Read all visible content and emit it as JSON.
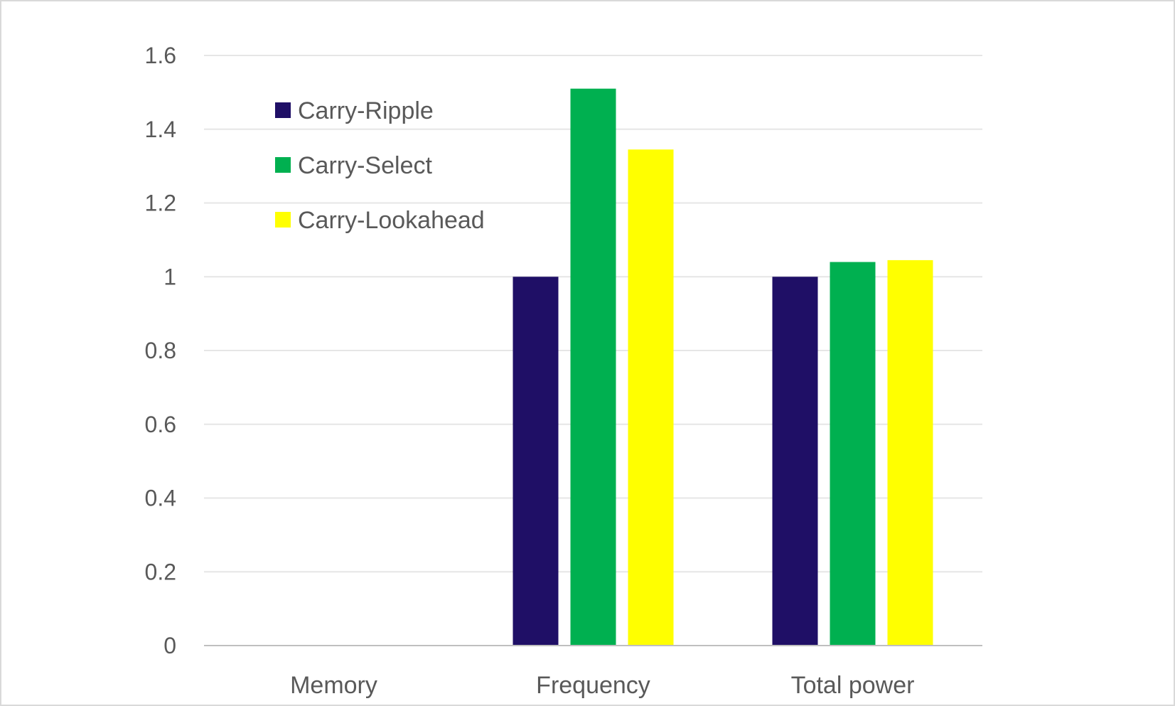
{
  "chart_data": {
    "type": "bar",
    "categories": [
      "Memory",
      "Frequency",
      "Total power"
    ],
    "series": [
      {
        "name": "Carry-Ripple",
        "color": "#1f0f66",
        "values": [
          null,
          1.0,
          1.0
        ]
      },
      {
        "name": "Carry-Select",
        "color": "#00b050",
        "values": [
          null,
          1.51,
          1.04
        ]
      },
      {
        "name": "Carry-Lookahead",
        "color": "#ffff00",
        "values": [
          null,
          1.345,
          1.045
        ]
      }
    ],
    "yticks": [
      "0",
      "0.2",
      "0.4",
      "0.6",
      "0.8",
      "1",
      "1.2",
      "1.4",
      "1.6"
    ],
    "ylim": [
      0,
      1.6
    ],
    "grid": true,
    "legend_position": "top-left"
  }
}
